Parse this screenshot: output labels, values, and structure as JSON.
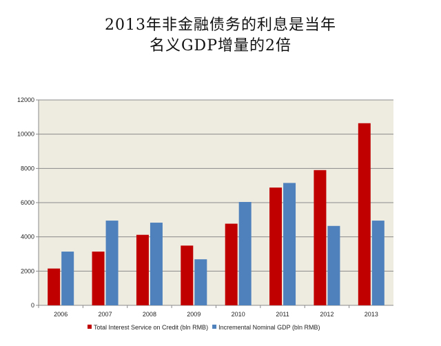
{
  "chart_data": {
    "type": "bar",
    "title": [
      "2013年非金融债务的利息是当年",
      "名义GDP增量的2倍"
    ],
    "xlabel": "",
    "ylabel": "",
    "ylim": [
      0,
      12000
    ],
    "yticks": [
      "0",
      "2000",
      "4000",
      "6000",
      "8000",
      "10000",
      "12000"
    ],
    "categories": [
      "2006",
      "2007",
      "2008",
      "2009",
      "2010",
      "2011",
      "2012",
      "2013"
    ],
    "grid": true,
    "legend_position": "bottom",
    "series": [
      {
        "name": "Total Interest Service on Credit (bln RMB)",
        "color": "#c00000",
        "values": [
          2150,
          3140,
          4120,
          3490,
          4770,
          6880,
          7900,
          10640
        ]
      },
      {
        "name": "Incremental Nominal GDP (bln RMB)",
        "color": "#4f81bd",
        "values": [
          3140,
          4950,
          4830,
          2690,
          6040,
          7150,
          4640,
          4950
        ]
      }
    ]
  }
}
